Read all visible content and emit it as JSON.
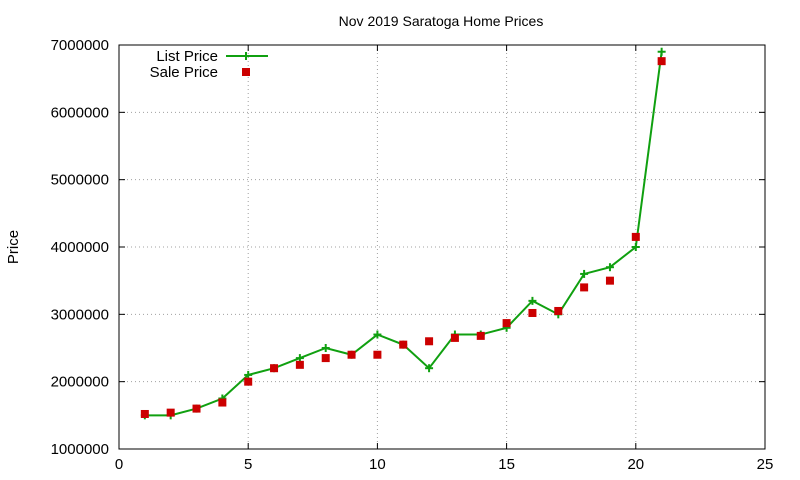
{
  "chart_data": {
    "type": "line",
    "title": "Nov 2019 Saratoga Home Prices",
    "xlabel": "",
    "ylabel": "Price",
    "xlim": [
      0,
      25
    ],
    "ylim": [
      1000000,
      7000000
    ],
    "x_ticks": [
      0,
      5,
      10,
      15,
      20,
      25
    ],
    "y_ticks": [
      1000000,
      2000000,
      3000000,
      4000000,
      5000000,
      6000000,
      7000000
    ],
    "grid": true,
    "legend_position": "top-left",
    "series": [
      {
        "name": "List Price",
        "style": "line-with-plus-markers",
        "color": "#10a010",
        "x": [
          1,
          2,
          3,
          4,
          5,
          6,
          7,
          8,
          9,
          10,
          11,
          12,
          13,
          14,
          15,
          16,
          17,
          18,
          19,
          20,
          21
        ],
        "values": [
          1500000,
          1500000,
          1600000,
          1750000,
          2100000,
          2200000,
          2350000,
          2500000,
          2400000,
          2700000,
          2550000,
          2200000,
          2700000,
          2700000,
          2800000,
          3200000,
          3000000,
          3600000,
          3700000,
          4000000,
          6900000
        ]
      },
      {
        "name": "Sale Price",
        "style": "square-markers",
        "color": "#cc0000",
        "x": [
          1,
          2,
          3,
          4,
          5,
          6,
          7,
          8,
          9,
          10,
          11,
          12,
          13,
          14,
          15,
          16,
          17,
          18,
          19,
          20,
          21
        ],
        "values": [
          1520000,
          1540000,
          1600000,
          1690000,
          2000000,
          2200000,
          2250000,
          2350000,
          2400000,
          2400000,
          2550000,
          2600000,
          2650000,
          2680000,
          2870000,
          3020000,
          3050000,
          3400000,
          3500000,
          4150000,
          6760000
        ]
      }
    ]
  }
}
